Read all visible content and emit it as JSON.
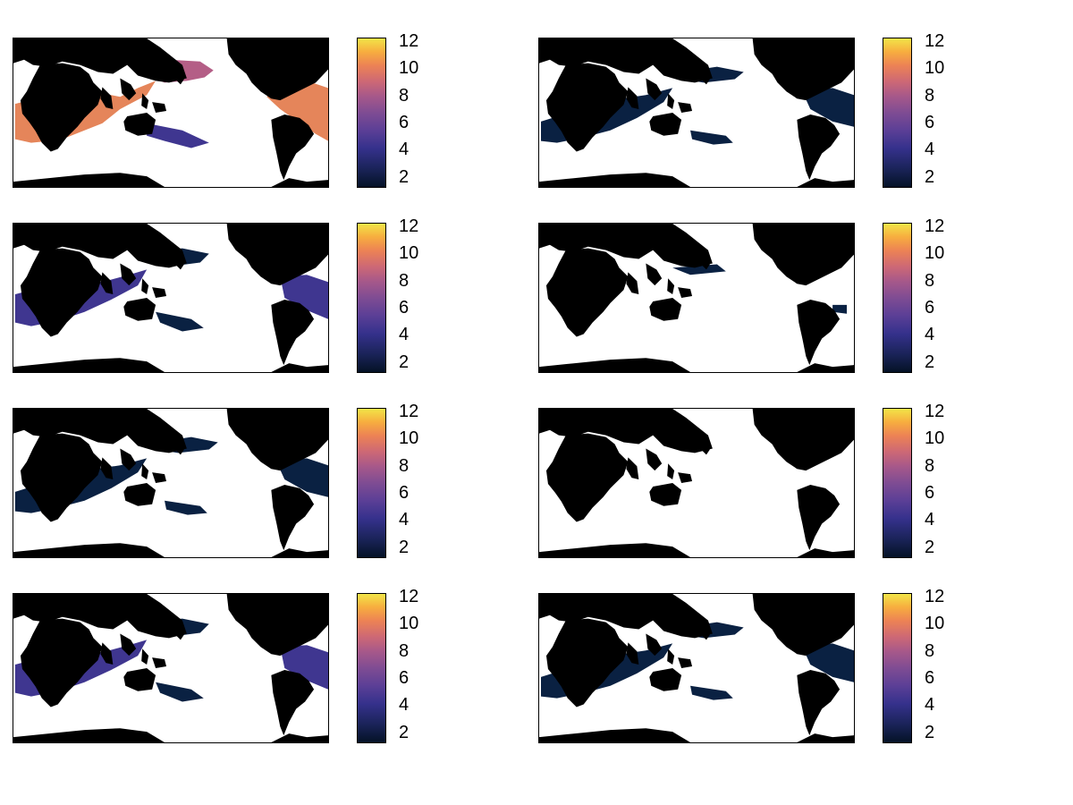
{
  "colors": {
    "land": "#000000",
    "ocean": "#ffffff",
    "low": "#0a2142",
    "mid": "#3f3690",
    "high": "#b45e86",
    "hot": "#e5855a"
  },
  "colorbar": {
    "colormap": "thermal",
    "ticks": [
      "12",
      "10",
      "8",
      "6",
      "4",
      "2"
    ]
  },
  "panels": [
    {
      "id": "r1c1",
      "intensity": "high"
    },
    {
      "id": "r1c2",
      "intensity": "low"
    },
    {
      "id": "r2c1",
      "intensity": "mid"
    },
    {
      "id": "r2c2",
      "intensity": "verylow"
    },
    {
      "id": "r3c1",
      "intensity": "low"
    },
    {
      "id": "r3c2",
      "intensity": "none"
    },
    {
      "id": "r4c1",
      "intensity": "mid"
    },
    {
      "id": "r4c2",
      "intensity": "low"
    }
  ]
}
